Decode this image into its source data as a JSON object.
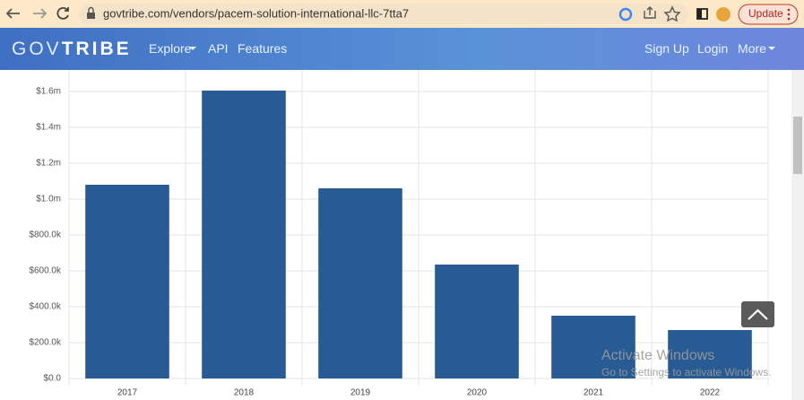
{
  "browser": {
    "url": "govtribe.com/vendors/pacem-solution-international-llc-7tta7",
    "update_button": "Update"
  },
  "navbar": {
    "logo_gov": "GOV",
    "logo_tribe": "TRIBE",
    "left_links": [
      "Explore",
      "API",
      "Features"
    ],
    "right_links": [
      "Sign Up",
      "Login",
      "More"
    ]
  },
  "chart_data": {
    "type": "bar",
    "categories": [
      "2017",
      "2018",
      "2019",
      "2020",
      "2021",
      "2022"
    ],
    "values": [
      1080000,
      1605000,
      1060000,
      635000,
      350000,
      270000
    ],
    "color": "#285b94",
    "ylim": [
      0,
      1600000
    ],
    "yticks": [
      {
        "value": 0,
        "label": "$0.0"
      },
      {
        "value": 200000,
        "label": "$200.0k"
      },
      {
        "value": 400000,
        "label": "$400.0k"
      },
      {
        "value": 600000,
        "label": "$600.0k"
      },
      {
        "value": 800000,
        "label": "$800.0k"
      },
      {
        "value": 1000000,
        "label": "$1.0m"
      },
      {
        "value": 1200000,
        "label": "$1.2m"
      },
      {
        "value": 1400000,
        "label": "$1.4m"
      },
      {
        "value": 1600000,
        "label": "$1.6m"
      }
    ],
    "grid": true
  },
  "watermark": {
    "title": "Activate Windows",
    "subtitle": "Go to Settings to activate Windows."
  }
}
